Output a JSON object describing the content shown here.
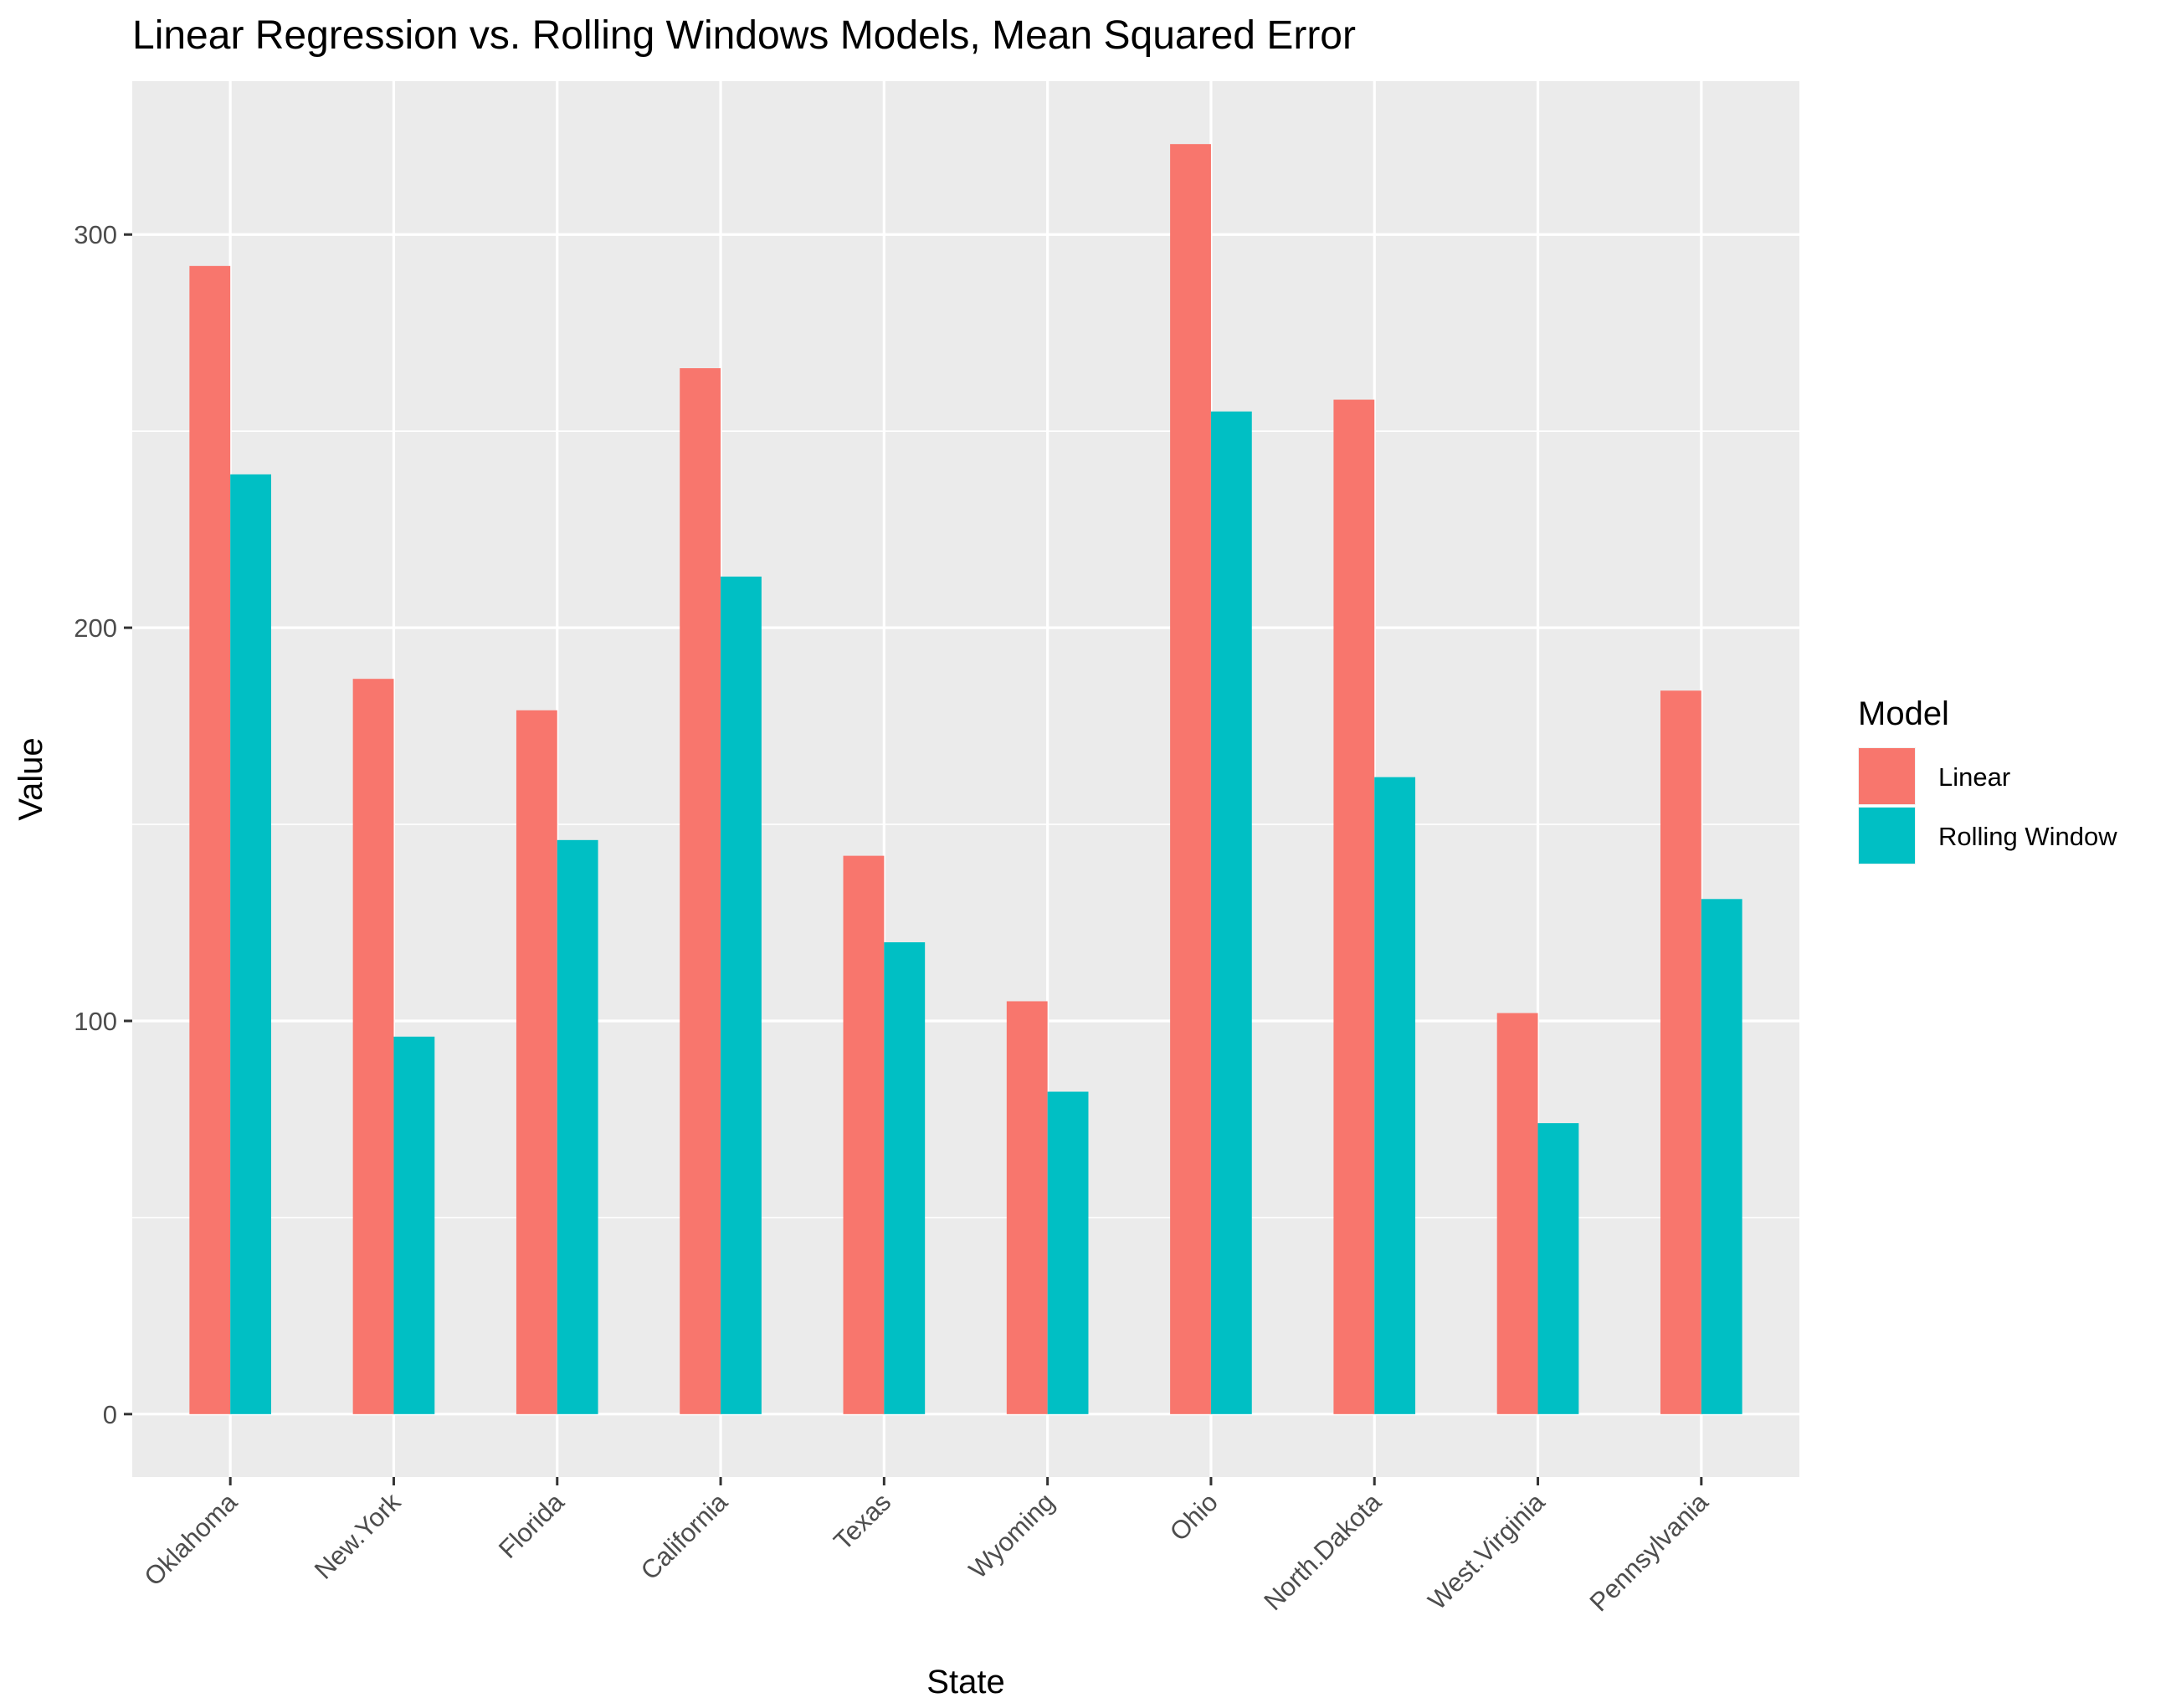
{
  "chart_data": {
    "type": "bar",
    "title": "Linear Regression vs. Rolling Windows Models, Mean Squared Error",
    "xlabel": "State",
    "ylabel": "Value",
    "categories": [
      "Oklahoma",
      "New.York",
      "Florida",
      "California",
      "Texas",
      "Wyoming",
      "Ohio",
      "North.Dakota",
      "West.Virginia",
      "Pennsylvania"
    ],
    "series": [
      {
        "name": "Linear",
        "color": "#F8766D",
        "values": [
          292,
          187,
          179,
          266,
          142,
          105,
          323,
          258,
          102,
          184
        ]
      },
      {
        "name": "Rolling Window",
        "color": "#00BFC4",
        "values": [
          239,
          96,
          146,
          213,
          120,
          82,
          255,
          162,
          74,
          131
        ]
      }
    ],
    "ylim": [
      -16,
      339
    ],
    "yticks": [
      0,
      100,
      200,
      300
    ],
    "ytick_labels": [
      "0",
      "100",
      "200",
      "300"
    ],
    "grid": true,
    "legend": {
      "title": "Model",
      "position": "right"
    }
  }
}
